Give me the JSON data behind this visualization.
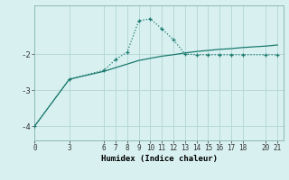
{
  "xlabel": "Humidex (Indice chaleur)",
  "bg_color": "#d8f0f0",
  "grid_color": "#b8d8d8",
  "line_color": "#1a7a6e",
  "line1_x": [
    0,
    3,
    6,
    7,
    8,
    9,
    10,
    11,
    12,
    13,
    14,
    15,
    16,
    17,
    18,
    20,
    21
  ],
  "line1_y": [
    -4.0,
    -2.7,
    -2.45,
    -2.15,
    -1.95,
    -1.08,
    -1.02,
    -1.3,
    -1.6,
    -2.0,
    -2.02,
    -2.02,
    -2.02,
    -2.02,
    -2.02,
    -2.02,
    -2.02
  ],
  "line2_x": [
    0,
    3,
    6,
    7,
    8,
    9,
    10,
    11,
    12,
    13,
    14,
    15,
    16,
    17,
    18,
    20,
    21
  ],
  "line2_y": [
    -4.0,
    -2.7,
    -2.48,
    -2.38,
    -2.28,
    -2.18,
    -2.12,
    -2.06,
    -2.02,
    -1.97,
    -1.93,
    -1.9,
    -1.87,
    -1.85,
    -1.82,
    -1.78,
    -1.75
  ],
  "xticks": [
    0,
    3,
    6,
    7,
    8,
    9,
    10,
    11,
    12,
    13,
    14,
    15,
    16,
    17,
    18,
    20,
    21
  ],
  "yticks": [
    -4,
    -3,
    -2
  ],
  "xlim": [
    0,
    21.5
  ],
  "ylim": [
    -4.4,
    -0.65
  ]
}
